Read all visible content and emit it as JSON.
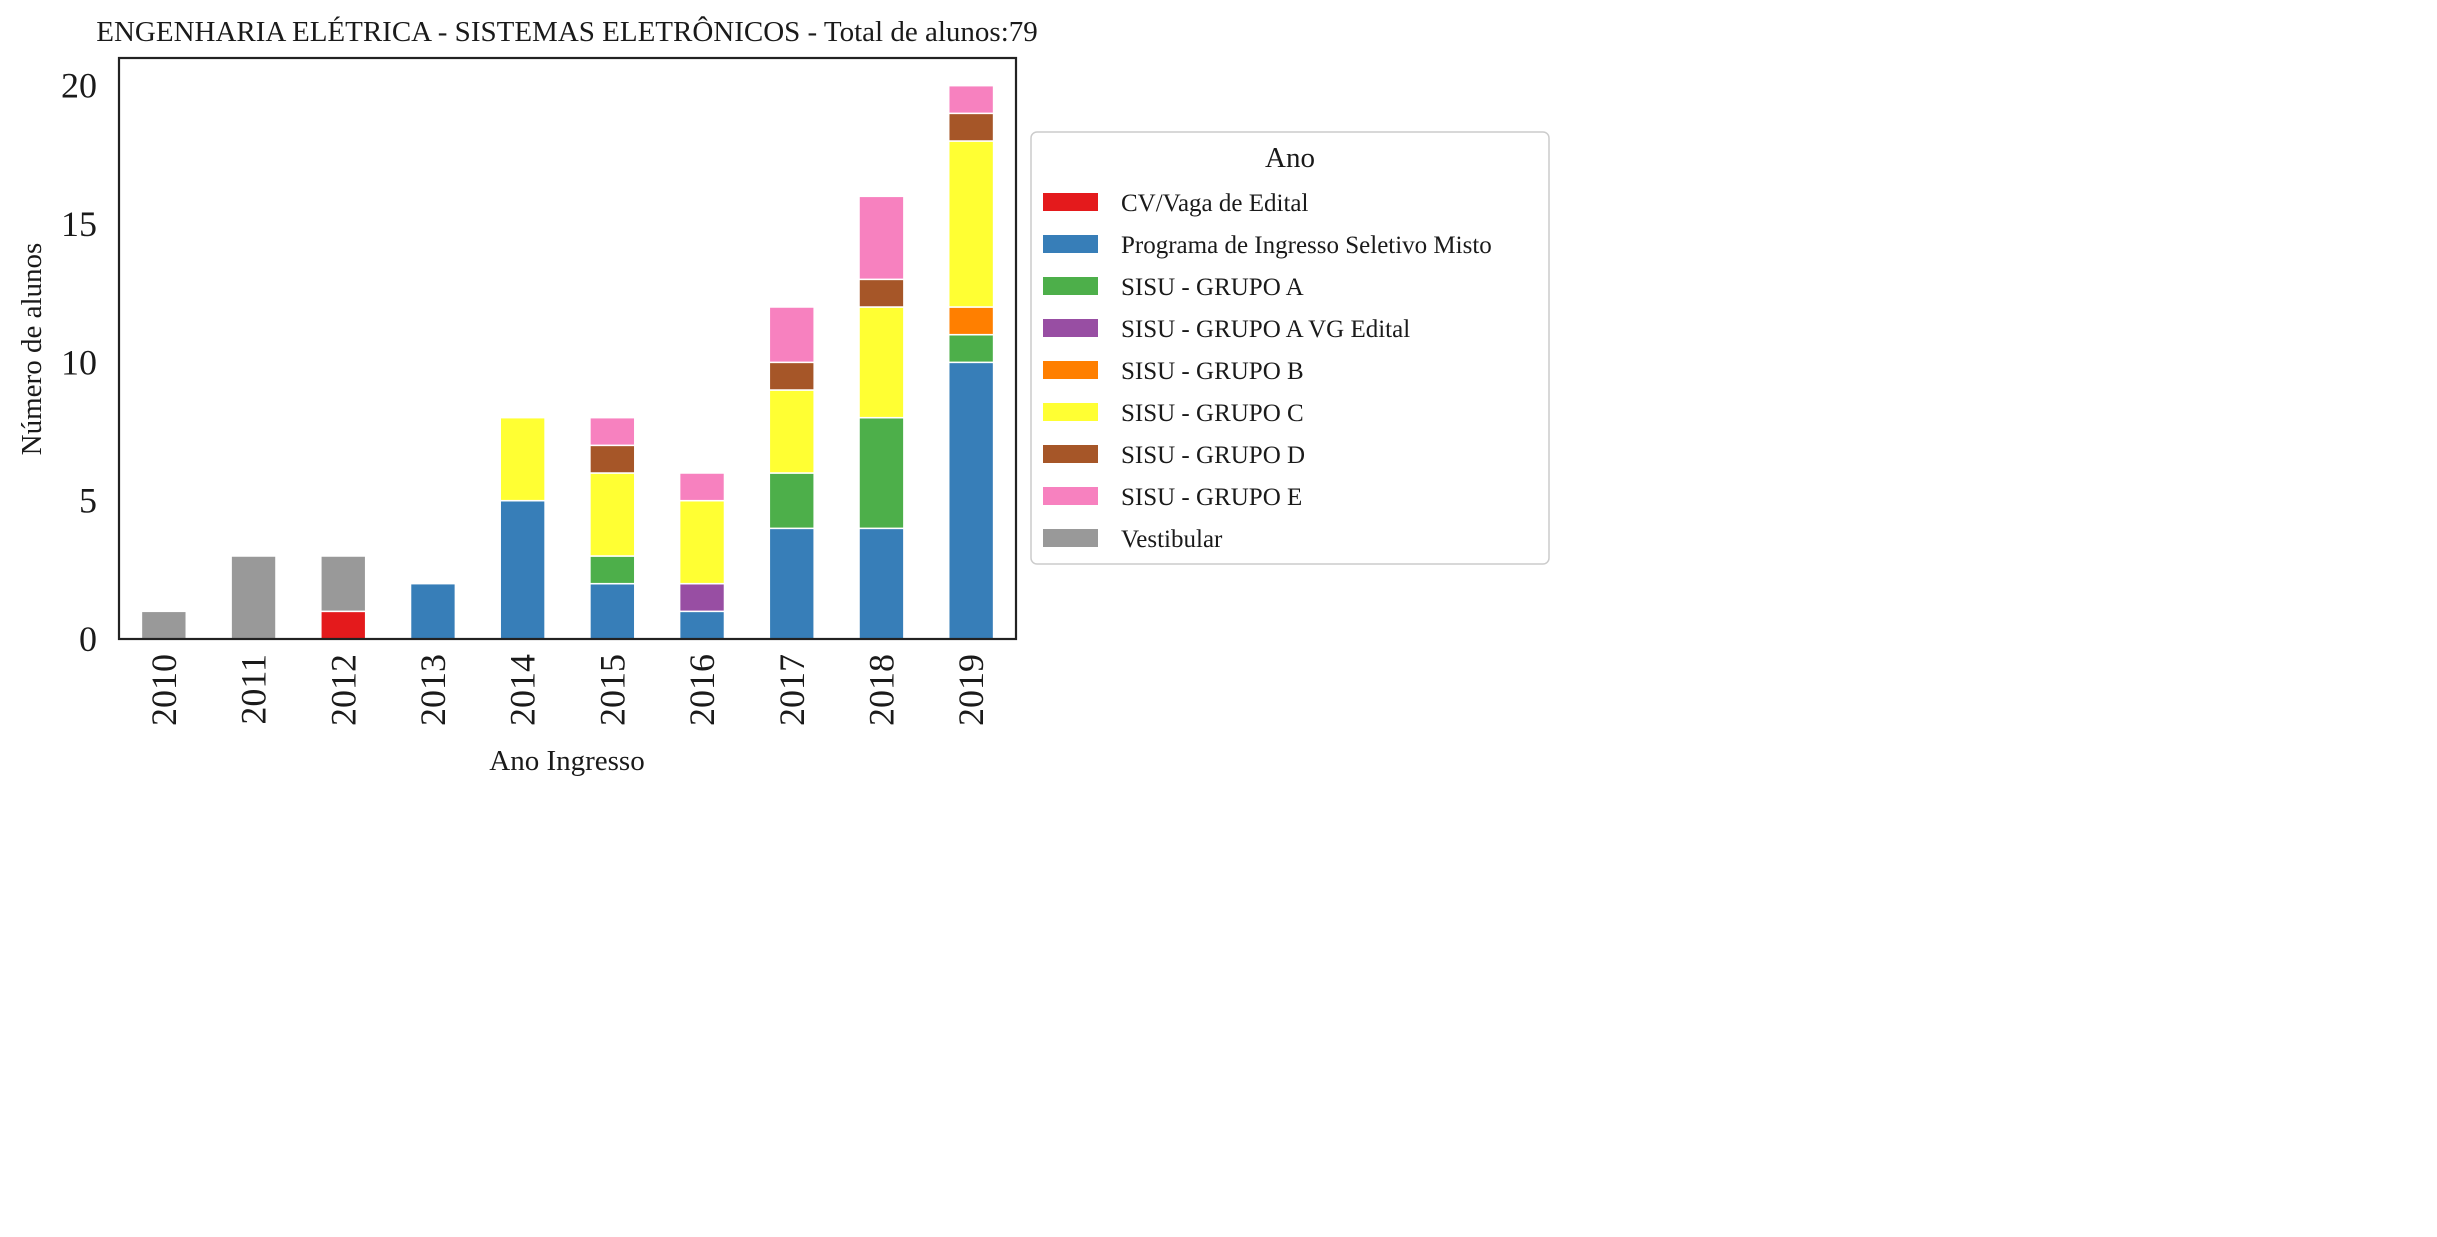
{
  "chart_data": {
    "type": "bar",
    "stacked": true,
    "title": "ENGENHARIA ELÉTRICA - SISTEMAS ELETRÔNICOS - Total de alunos:79",
    "xlabel": "Ano Ingresso",
    "ylabel": "Número de alunos",
    "ylim": [
      0,
      21
    ],
    "yticks": [
      "0",
      "5",
      "10",
      "15",
      "20"
    ],
    "grid": false,
    "legend_title": "Ano",
    "legend_position": "right",
    "categories": [
      "2010",
      "2011",
      "2012",
      "2013",
      "2014",
      "2015",
      "2016",
      "2017",
      "2018",
      "2019"
    ],
    "series": [
      {
        "name": "CV/Vaga de Edital",
        "color": "#e41a1c",
        "values": [
          0,
          0,
          1,
          0,
          0,
          0,
          0,
          0,
          0,
          0
        ]
      },
      {
        "name": "Programa de Ingresso Seletivo Misto",
        "color": "#377eb8",
        "values": [
          0,
          0,
          0,
          2,
          5,
          2,
          1,
          4,
          4,
          10
        ]
      },
      {
        "name": "SISU - GRUPO A",
        "color": "#4daf4a",
        "values": [
          0,
          0,
          0,
          0,
          0,
          1,
          0,
          2,
          4,
          1
        ]
      },
      {
        "name": "SISU - GRUPO A VG Edital",
        "color": "#984ea3",
        "values": [
          0,
          0,
          0,
          0,
          0,
          0,
          1,
          0,
          0,
          0
        ]
      },
      {
        "name": "SISU - GRUPO B",
        "color": "#ff7f00",
        "values": [
          0,
          0,
          0,
          0,
          0,
          0,
          0,
          0,
          0,
          1
        ]
      },
      {
        "name": "SISU - GRUPO C",
        "color": "#ffff33",
        "values": [
          0,
          0,
          0,
          0,
          3,
          3,
          3,
          3,
          4,
          6
        ]
      },
      {
        "name": "SISU - GRUPO D",
        "color": "#a65628",
        "values": [
          0,
          0,
          0,
          0,
          0,
          1,
          0,
          1,
          1,
          1
        ]
      },
      {
        "name": "SISU - GRUPO E",
        "color": "#f781bf",
        "values": [
          0,
          0,
          0,
          0,
          0,
          1,
          1,
          2,
          3,
          1
        ]
      },
      {
        "name": "Vestibular",
        "color": "#999999",
        "values": [
          1,
          3,
          2,
          0,
          0,
          0,
          0,
          0,
          0,
          0
        ]
      }
    ]
  }
}
